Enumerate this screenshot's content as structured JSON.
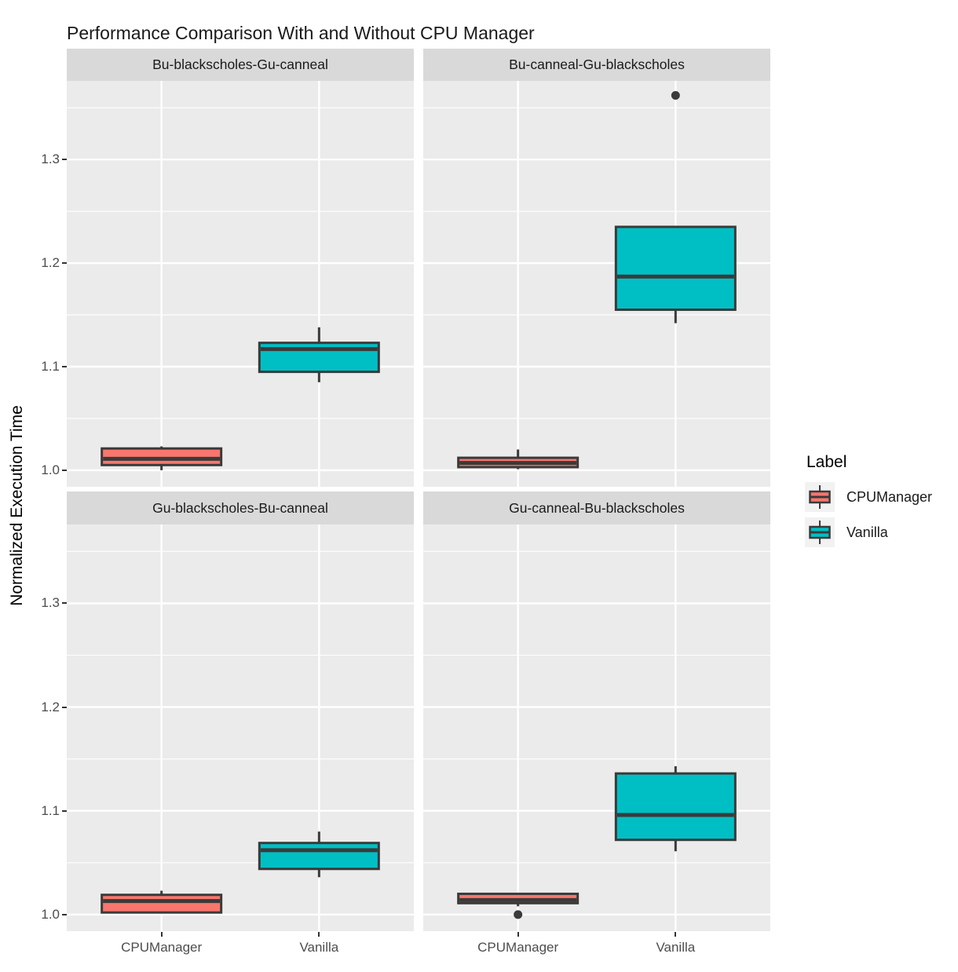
{
  "colors": {
    "panel_bg": "#EBEBEB",
    "strip_bg": "#D9D9D9",
    "grid": "#FFFFFF",
    "box_stroke": "#3A3A3A",
    "outlier": "#3A3A3A",
    "axis_text": "#4D4D4D",
    "tick_mark": "#333333",
    "title_text": "#1A1A1A",
    "legend_key_bg": "#F2F2F2",
    "cpumanager_fill": "#F8766D",
    "vanilla_fill": "#00BFC4"
  },
  "chart_data": {
    "type": "boxplot",
    "title": "Performance Comparison With and Without CPU Manager",
    "xlabel": "",
    "ylabel": "Normalized Execution Time",
    "categories": [
      "CPUManager",
      "Vanilla"
    ],
    "y_ticks": [
      "1.0",
      "1.1",
      "1.2",
      "1.3"
    ],
    "ylim": [
      0.984,
      1.376
    ],
    "grid": "on",
    "legend": {
      "title": "Label",
      "position": "right",
      "entries": [
        {
          "label": "CPUManager",
          "color": "#F8766D"
        },
        {
          "label": "Vanilla",
          "color": "#00BFC4"
        }
      ]
    },
    "facets": [
      {
        "label": "Bu-blackscholes-Gu-canneal",
        "boxes": [
          {
            "group": "CPUManager",
            "min": 1.0,
            "q1": 1.005,
            "median": 1.011,
            "q3": 1.021,
            "max": 1.023,
            "outliers": []
          },
          {
            "group": "Vanilla",
            "min": 1.085,
            "q1": 1.095,
            "median": 1.117,
            "q3": 1.123,
            "max": 1.138,
            "outliers": []
          }
        ]
      },
      {
        "label": "Bu-canneal-Gu-blackscholes",
        "boxes": [
          {
            "group": "CPUManager",
            "min": 1.001,
            "q1": 1.003,
            "median": 1.007,
            "q3": 1.012,
            "max": 1.02,
            "outliers": []
          },
          {
            "group": "Vanilla",
            "min": 1.142,
            "q1": 1.155,
            "median": 1.187,
            "q3": 1.235,
            "max": 1.235,
            "outliers": [
              1.362
            ]
          }
        ]
      },
      {
        "label": "Gu-blackscholes-Bu-canneal",
        "boxes": [
          {
            "group": "CPUManager",
            "min": 1.002,
            "q1": 1.002,
            "median": 1.013,
            "q3": 1.019,
            "max": 1.023,
            "outliers": []
          },
          {
            "group": "Vanilla",
            "min": 1.036,
            "q1": 1.044,
            "median": 1.062,
            "q3": 1.069,
            "max": 1.08,
            "outliers": []
          }
        ]
      },
      {
        "label": "Gu-canneal-Bu-blackscholes",
        "boxes": [
          {
            "group": "CPUManager",
            "min": 1.008,
            "q1": 1.011,
            "median": 1.014,
            "q3": 1.02,
            "max": 1.021,
            "outliers": [
              1.0
            ]
          },
          {
            "group": "Vanilla",
            "min": 1.061,
            "q1": 1.072,
            "median": 1.096,
            "q3": 1.136,
            "max": 1.143,
            "outliers": []
          }
        ]
      }
    ]
  }
}
